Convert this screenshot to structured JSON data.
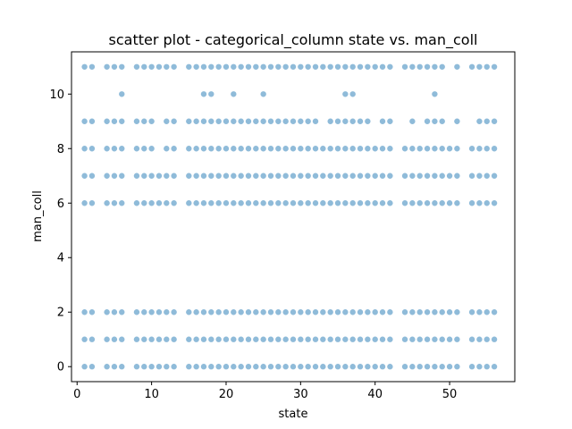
{
  "chart_data": {
    "type": "scatter",
    "title": "scatter plot - categorical_column state vs. man_coll",
    "xlabel": "state",
    "ylabel": "man_coll",
    "xlim": [
      -0.75,
      58.75
    ],
    "ylim": [
      -0.55,
      11.55
    ],
    "xticks": [
      0,
      10,
      20,
      30,
      40,
      50
    ],
    "yticks": [
      0,
      2,
      4,
      6,
      8,
      10
    ],
    "grid": false,
    "marker_color": "#1f77b4",
    "marker_alpha": 0.5,
    "states": [
      1,
      2,
      4,
      5,
      6,
      8,
      9,
      10,
      11,
      12,
      13,
      15,
      16,
      17,
      18,
      19,
      20,
      21,
      22,
      23,
      24,
      25,
      26,
      27,
      28,
      29,
      30,
      31,
      32,
      33,
      34,
      35,
      36,
      37,
      38,
      39,
      40,
      41,
      42,
      44,
      45,
      46,
      47,
      48,
      49,
      50,
      51,
      53,
      54,
      55,
      56
    ],
    "series": [
      {
        "name": "man_coll = 0",
        "y": 0,
        "x": "all_states"
      },
      {
        "name": "man_coll = 1",
        "y": 1,
        "x": "all_states"
      },
      {
        "name": "man_coll = 2",
        "y": 2,
        "x": "all_states"
      },
      {
        "name": "man_coll = 6",
        "y": 6,
        "x": "all_states"
      },
      {
        "name": "man_coll = 7",
        "y": 7,
        "x": "all_states"
      },
      {
        "name": "man_coll = 8",
        "y": 8,
        "x": [
          1,
          2,
          4,
          5,
          6,
          8,
          9,
          10,
          12,
          13,
          15,
          16,
          17,
          18,
          19,
          20,
          21,
          22,
          23,
          24,
          25,
          26,
          27,
          28,
          29,
          30,
          31,
          32,
          33,
          34,
          35,
          36,
          37,
          38,
          39,
          40,
          41,
          42,
          44,
          45,
          46,
          47,
          48,
          49,
          50,
          51,
          53,
          54,
          55,
          56
        ]
      },
      {
        "name": "man_coll = 9",
        "y": 9,
        "x": [
          1,
          2,
          4,
          5,
          6,
          8,
          9,
          10,
          12,
          13,
          15,
          16,
          17,
          18,
          19,
          20,
          21,
          22,
          23,
          24,
          25,
          26,
          27,
          28,
          29,
          30,
          31,
          32,
          34,
          35,
          36,
          37,
          38,
          39,
          41,
          42,
          45,
          47,
          48,
          49,
          51,
          54,
          55,
          56
        ]
      },
      {
        "name": "man_coll = 10",
        "y": 10,
        "x": [
          6,
          17,
          18,
          21,
          25,
          36,
          37,
          48
        ]
      },
      {
        "name": "man_coll = 11",
        "y": 11,
        "x": [
          1,
          2,
          4,
          5,
          6,
          8,
          9,
          10,
          11,
          12,
          13,
          15,
          16,
          17,
          18,
          19,
          20,
          21,
          22,
          23,
          24,
          25,
          26,
          27,
          28,
          29,
          30,
          31,
          32,
          33,
          34,
          35,
          36,
          37,
          38,
          39,
          40,
          41,
          42,
          44,
          45,
          46,
          47,
          48,
          49,
          51,
          53,
          54,
          55,
          56
        ]
      }
    ]
  }
}
